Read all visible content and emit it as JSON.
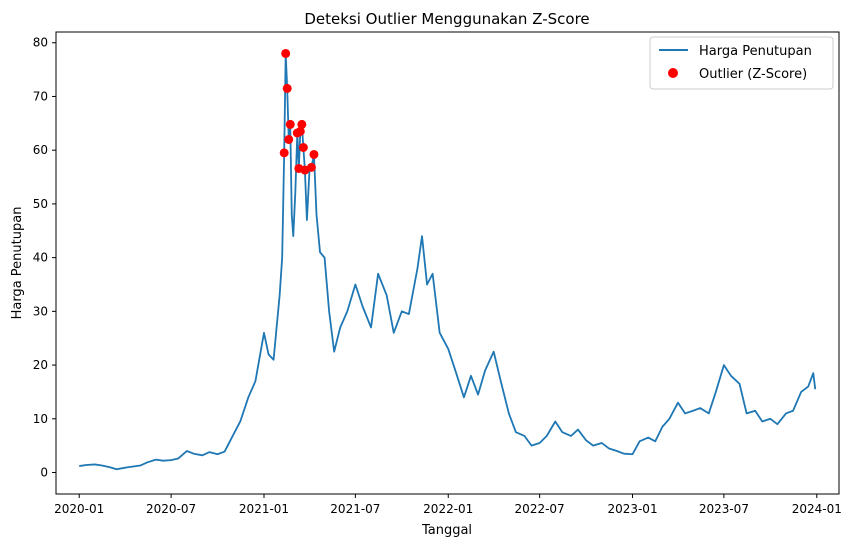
{
  "chart_data": {
    "type": "line",
    "title": "Deteksi Outlier Menggunakan Z-Score",
    "xlabel": "Tanggal",
    "ylabel": "Harga Penutupan",
    "xlim": [
      "2019-11-16",
      "2024-02-14"
    ],
    "ylim": [
      -4.0,
      82.0
    ],
    "x_ticks": [
      "2020-01",
      "2020-07",
      "2021-01",
      "2021-07",
      "2022-01",
      "2022-07",
      "2023-01",
      "2023-07",
      "2024-01"
    ],
    "y_ticks": [
      0,
      10,
      20,
      30,
      40,
      50,
      60,
      70,
      80
    ],
    "grid": false,
    "legend_position": "top-right",
    "series": [
      {
        "name": "Harga Penutupan",
        "kind": "line",
        "color": "#1f77b4",
        "points": [
          [
            "2020-01-01",
            1.2
          ],
          [
            "2020-01-15",
            1.4
          ],
          [
            "2020-02-01",
            1.5
          ],
          [
            "2020-02-15",
            1.3
          ],
          [
            "2020-03-01",
            1.0
          ],
          [
            "2020-03-15",
            0.6
          ],
          [
            "2020-04-01",
            0.9
          ],
          [
            "2020-04-15",
            1.1
          ],
          [
            "2020-05-01",
            1.3
          ],
          [
            "2020-05-15",
            1.9
          ],
          [
            "2020-06-01",
            2.4
          ],
          [
            "2020-06-15",
            2.2
          ],
          [
            "2020-07-01",
            2.3
          ],
          [
            "2020-07-15",
            2.6
          ],
          [
            "2020-08-01",
            4.0
          ],
          [
            "2020-08-15",
            3.5
          ],
          [
            "2020-09-01",
            3.2
          ],
          [
            "2020-09-15",
            3.8
          ],
          [
            "2020-10-01",
            3.4
          ],
          [
            "2020-10-15",
            3.9
          ],
          [
            "2020-11-01",
            7.0
          ],
          [
            "2020-11-15",
            9.5
          ],
          [
            "2020-12-01",
            14.0
          ],
          [
            "2020-12-15",
            17.0
          ],
          [
            "2021-01-01",
            26.0
          ],
          [
            "2021-01-10",
            22.0
          ],
          [
            "2021-01-20",
            21.0
          ],
          [
            "2021-02-01",
            33.0
          ],
          [
            "2021-02-06",
            40.0
          ],
          [
            "2021-02-10",
            59.5
          ],
          [
            "2021-02-13",
            78.0
          ],
          [
            "2021-02-16",
            71.5
          ],
          [
            "2021-02-19",
            62.0
          ],
          [
            "2021-02-22",
            64.8
          ],
          [
            "2021-02-25",
            48.0
          ],
          [
            "2021-02-28",
            44.0
          ],
          [
            "2021-03-04",
            52.0
          ],
          [
            "2021-03-08",
            63.2
          ],
          [
            "2021-03-11",
            56.6
          ],
          [
            "2021-03-14",
            63.5
          ],
          [
            "2021-03-17",
            64.8
          ],
          [
            "2021-03-20",
            60.5
          ],
          [
            "2021-03-23",
            56.3
          ],
          [
            "2021-03-27",
            47.0
          ],
          [
            "2021-04-01",
            56.0
          ],
          [
            "2021-04-05",
            56.8
          ],
          [
            "2021-04-10",
            59.2
          ],
          [
            "2021-04-15",
            48.0
          ],
          [
            "2021-04-22",
            41.0
          ],
          [
            "2021-05-01",
            40.0
          ],
          [
            "2021-05-10",
            30.0
          ],
          [
            "2021-05-20",
            22.5
          ],
          [
            "2021-06-01",
            27.0
          ],
          [
            "2021-06-15",
            30.0
          ],
          [
            "2021-07-01",
            35.0
          ],
          [
            "2021-07-15",
            31.0
          ],
          [
            "2021-08-01",
            27.0
          ],
          [
            "2021-08-15",
            37.0
          ],
          [
            "2021-09-01",
            33.0
          ],
          [
            "2021-09-15",
            26.0
          ],
          [
            "2021-10-01",
            30.0
          ],
          [
            "2021-10-15",
            29.5
          ],
          [
            "2021-11-01",
            38.0
          ],
          [
            "2021-11-10",
            44.0
          ],
          [
            "2021-11-20",
            35.0
          ],
          [
            "2021-12-01",
            37.0
          ],
          [
            "2021-12-15",
            26.0
          ],
          [
            "2022-01-01",
            23.0
          ],
          [
            "2022-01-15",
            19.0
          ],
          [
            "2022-02-01",
            14.0
          ],
          [
            "2022-02-15",
            18.0
          ],
          [
            "2022-03-01",
            14.5
          ],
          [
            "2022-03-15",
            19.0
          ],
          [
            "2022-04-01",
            22.5
          ],
          [
            "2022-04-15",
            17.0
          ],
          [
            "2022-05-01",
            11.0
          ],
          [
            "2022-05-15",
            7.5
          ],
          [
            "2022-06-01",
            6.8
          ],
          [
            "2022-06-15",
            5.0
          ],
          [
            "2022-07-01",
            5.5
          ],
          [
            "2022-07-15",
            6.8
          ],
          [
            "2022-08-01",
            9.5
          ],
          [
            "2022-08-15",
            7.5
          ],
          [
            "2022-09-01",
            6.8
          ],
          [
            "2022-09-15",
            8.0
          ],
          [
            "2022-10-01",
            6.0
          ],
          [
            "2022-10-15",
            5.0
          ],
          [
            "2022-11-01",
            5.5
          ],
          [
            "2022-11-15",
            4.5
          ],
          [
            "2022-12-01",
            4.0
          ],
          [
            "2022-12-15",
            3.5
          ],
          [
            "2023-01-01",
            3.4
          ],
          [
            "2023-01-15",
            5.8
          ],
          [
            "2023-02-01",
            6.5
          ],
          [
            "2023-02-15",
            5.8
          ],
          [
            "2023-03-01",
            8.5
          ],
          [
            "2023-03-15",
            10.0
          ],
          [
            "2023-04-01",
            13.0
          ],
          [
            "2023-04-15",
            11.0
          ],
          [
            "2023-05-01",
            11.5
          ],
          [
            "2023-05-15",
            12.0
          ],
          [
            "2023-06-01",
            11.0
          ],
          [
            "2023-06-15",
            15.0
          ],
          [
            "2023-07-01",
            20.0
          ],
          [
            "2023-07-15",
            18.0
          ],
          [
            "2023-08-01",
            16.5
          ],
          [
            "2023-08-15",
            11.0
          ],
          [
            "2023-09-01",
            11.5
          ],
          [
            "2023-09-15",
            9.5
          ],
          [
            "2023-10-01",
            10.0
          ],
          [
            "2023-10-15",
            9.0
          ],
          [
            "2023-11-01",
            11.0
          ],
          [
            "2023-11-15",
            11.5
          ],
          [
            "2023-12-01",
            15.0
          ],
          [
            "2023-12-15",
            16.0
          ],
          [
            "2023-12-25",
            18.5
          ],
          [
            "2023-12-29",
            15.5
          ]
        ]
      },
      {
        "name": "Outlier (Z-Score)",
        "kind": "scatter",
        "color": "#ff0000",
        "points": [
          [
            "2021-02-10",
            59.5
          ],
          [
            "2021-02-13",
            78.0
          ],
          [
            "2021-02-16",
            71.5
          ],
          [
            "2021-02-19",
            62.0
          ],
          [
            "2021-02-22",
            64.8
          ],
          [
            "2021-03-08",
            63.2
          ],
          [
            "2021-03-11",
            56.6
          ],
          [
            "2021-03-14",
            63.5
          ],
          [
            "2021-03-17",
            64.8
          ],
          [
            "2021-03-20",
            60.5
          ],
          [
            "2021-03-23",
            56.3
          ],
          [
            "2021-04-05",
            56.8
          ],
          [
            "2021-04-10",
            59.2
          ]
        ]
      }
    ]
  }
}
